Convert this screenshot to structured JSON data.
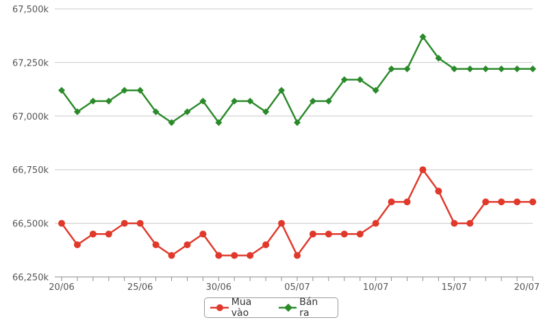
{
  "chart_data": {
    "type": "line",
    "title": "",
    "xlabel": "",
    "ylabel": "",
    "x": [
      "20/06",
      "21/06",
      "22/06",
      "23/06",
      "24/06",
      "25/06",
      "26/06",
      "27/06",
      "28/06",
      "29/06",
      "30/06",
      "01/07",
      "02/07",
      "03/07",
      "04/07",
      "05/07",
      "06/07",
      "07/07",
      "08/07",
      "09/07",
      "10/07",
      "11/07",
      "12/07",
      "13/07",
      "14/07",
      "15/07",
      "16/07",
      "17/07",
      "18/07",
      "19/07",
      "20/07"
    ],
    "x_tick_labels": [
      "20/06",
      "25/06",
      "30/06",
      "05/07",
      "10/07",
      "15/07",
      "20/07"
    ],
    "y_tick_labels": [
      "66,250k",
      "66,500k",
      "66,750k",
      "67,000k",
      "67,250k",
      "67,500k"
    ],
    "ylim": [
      66250,
      67500
    ],
    "y_ticks": [
      66250,
      66500,
      66750,
      67000,
      67250,
      67500
    ],
    "grid": true,
    "legend_position": "bottom-center",
    "series": [
      {
        "name": "Mua vào",
        "color": "#e0392b",
        "marker": "circle",
        "values": [
          66500,
          66400,
          66450,
          66450,
          66500,
          66500,
          66400,
          66350,
          66400,
          66450,
          66350,
          66350,
          66350,
          66400,
          66500,
          66350,
          66450,
          66450,
          66450,
          66450,
          66500,
          66600,
          66600,
          66750,
          66650,
          66500,
          66500,
          66600,
          66600,
          66600,
          66600
        ]
      },
      {
        "name": "Bán ra",
        "color": "#2a8a2a",
        "marker": "diamond",
        "values": [
          67120,
          67020,
          67070,
          67070,
          67120,
          67120,
          67020,
          66970,
          67020,
          67070,
          66970,
          67070,
          67070,
          67020,
          67120,
          66970,
          67070,
          67070,
          67170,
          67170,
          67120,
          67220,
          67220,
          67370,
          67270,
          67220,
          67220,
          67220,
          67220,
          67220,
          67220
        ]
      }
    ]
  }
}
